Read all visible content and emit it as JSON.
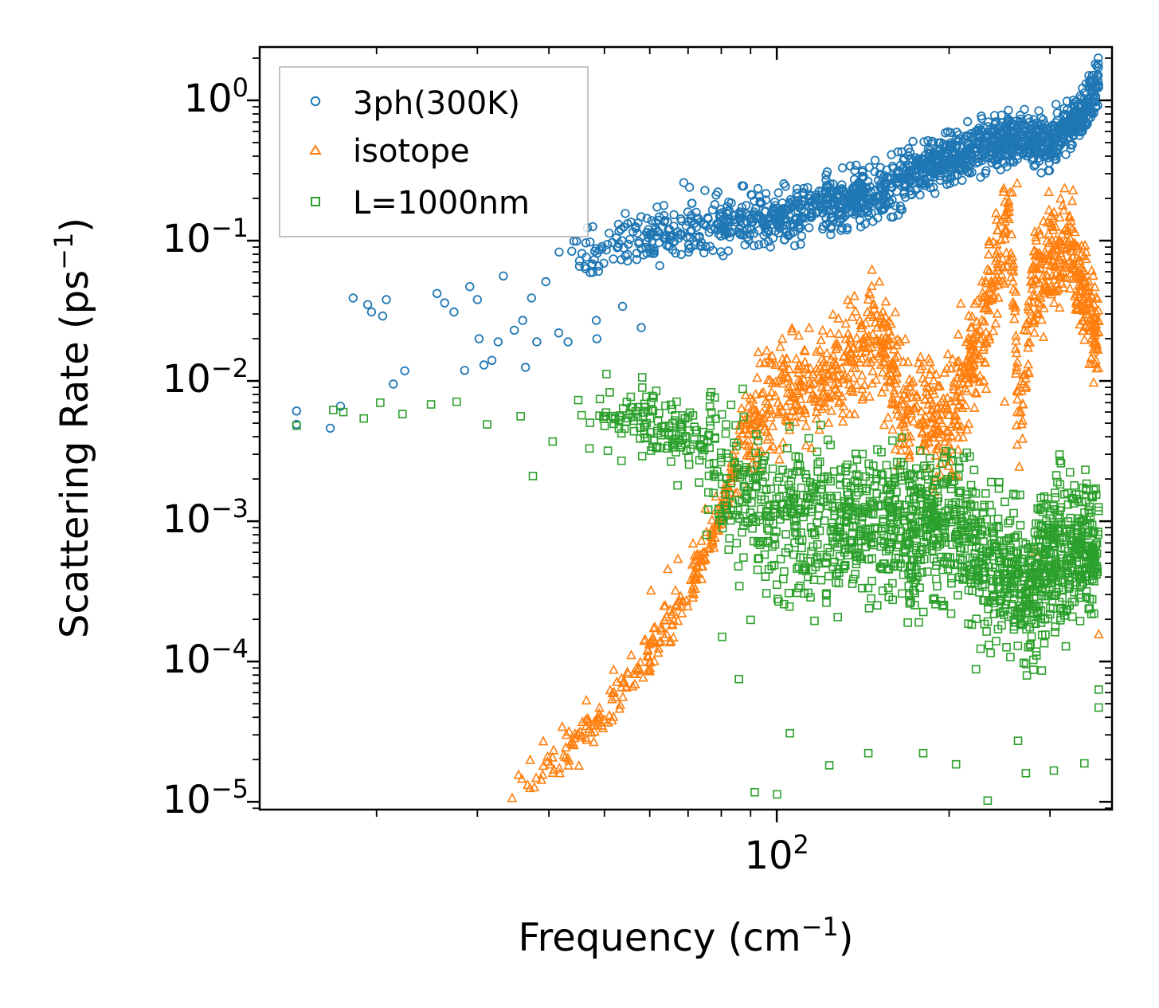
{
  "chart_data": {
    "type": "scatter",
    "title": "",
    "xlabel": "Frequency (cm",
    "xlabel_sup": "−1",
    "xlabel_tail": ")",
    "ylabel": "Scattering Rate (ps",
    "ylabel_sup": "−1",
    "ylabel_tail": ")",
    "xscale": "log",
    "yscale": "log",
    "xlim": [
      12.5,
      385
    ],
    "ylim": [
      8.8e-06,
      2.4
    ],
    "x_tick_labels": [
      {
        "value": 100,
        "base": "10",
        "exp": "2"
      }
    ],
    "y_tick_labels": [
      {
        "value": 1,
        "base": "10",
        "exp": "0"
      },
      {
        "value": 0.1,
        "base": "10",
        "exp": "−1"
      },
      {
        "value": 0.01,
        "base": "10",
        "exp": "−2"
      },
      {
        "value": 0.001,
        "base": "10",
        "exp": "−3"
      },
      {
        "value": 0.0001,
        "base": "10",
        "exp": "−4"
      },
      {
        "value": 1e-05,
        "base": "10",
        "exp": "−5"
      }
    ],
    "legend_position": "top-left",
    "series": [
      {
        "name": "3ph(300K)",
        "marker": "circle",
        "color": "#1f77b4",
        "trend": [
          [
            14.5,
            0.005
          ],
          [
            18,
            0.025
          ],
          [
            25,
            0.03
          ],
          [
            35,
            0.06
          ],
          [
            50,
            0.09
          ],
          [
            70,
            0.12
          ],
          [
            100,
            0.15
          ],
          [
            150,
            0.22
          ],
          [
            200,
            0.4
          ],
          [
            260,
            0.55
          ],
          [
            300,
            0.5
          ],
          [
            330,
            0.7
          ],
          [
            365,
            1.2
          ]
        ],
        "samples": [
          [
            14.5,
            0.0061
          ],
          [
            14.5,
            0.0049
          ],
          [
            16.6,
            0.0046
          ],
          [
            17.3,
            0.0066
          ],
          [
            18.2,
            0.039
          ],
          [
            19.3,
            0.035
          ],
          [
            19.6,
            0.031
          ],
          [
            20.5,
            0.029
          ],
          [
            20.8,
            0.038
          ],
          [
            21.4,
            0.0095
          ],
          [
            22.4,
            0.0118
          ],
          [
            25.5,
            0.042
          ],
          [
            26.3,
            0.036
          ],
          [
            27.3,
            0.031
          ],
          [
            28.5,
            0.0119
          ],
          [
            29.1,
            0.047
          ],
          [
            30.0,
            0.038
          ],
          [
            30.2,
            0.02
          ],
          [
            30.8,
            0.013
          ],
          [
            31.8,
            0.014
          ],
          [
            32.6,
            0.019
          ],
          [
            33.3,
            0.056
          ],
          [
            34.8,
            0.023
          ],
          [
            36.0,
            0.027
          ],
          [
            36.4,
            0.0125
          ],
          [
            37.3,
            0.039
          ],
          [
            38.1,
            0.019
          ],
          [
            39.5,
            0.051
          ],
          [
            41.6,
            0.022
          ],
          [
            43.2,
            0.019
          ],
          [
            48.4,
            0.027
          ],
          [
            48.5,
            0.02
          ],
          [
            53.8,
            0.034
          ],
          [
            58.0,
            0.024
          ],
          [
            60.8,
            0.081
          ],
          [
            65.0,
            0.12
          ],
          [
            68.8,
            0.259
          ],
          [
            70.4,
            0.24
          ],
          [
            74.9,
            0.228
          ],
          [
            78.9,
            0.222
          ],
          [
            90.2,
            0.213
          ],
          [
            95.7,
            0.195
          ],
          [
            125.0,
            0.189
          ],
          [
            139.9,
            0.184
          ],
          [
            159.8,
            0.328
          ],
          [
            200.0,
            0.462
          ],
          [
            234.2,
            0.701
          ],
          [
            269.9,
            0.673
          ],
          [
            275.2,
            0.743
          ],
          [
            300.0,
            0.549
          ],
          [
            303.7,
            0.481
          ],
          [
            339.3,
            0.834
          ],
          [
            348.6,
            0.936
          ],
          [
            365.0,
            1.291
          ]
        ]
      },
      {
        "name": "isotope",
        "marker": "triangle",
        "color": "#ff7f0e",
        "trend": [
          [
            35,
            1.05e-05
          ],
          [
            40,
            1.75e-05
          ],
          [
            50,
            4.2e-05
          ],
          [
            60,
            0.00011
          ],
          [
            70,
            0.0003
          ],
          [
            80,
            0.0012
          ],
          [
            90,
            0.0045
          ],
          [
            100,
            0.008
          ],
          [
            130,
            0.012
          ],
          [
            150,
            0.025
          ],
          [
            165,
            0.007
          ],
          [
            200,
            0.005
          ],
          [
            230,
            0.025
          ],
          [
            255,
            0.2
          ],
          [
            265,
            0.005
          ],
          [
            280,
            0.05
          ],
          [
            320,
            0.1
          ],
          [
            365,
            0.02
          ]
        ],
        "samples": [
          [
            34.5,
            1.06e-05
          ],
          [
            35.4,
            1.55e-05
          ],
          [
            37.1,
            1.98e-05
          ],
          [
            39.1,
            2.69e-05
          ],
          [
            42.2,
            3.41e-05
          ],
          [
            46.5,
            5.26e-05
          ],
          [
            51.9,
            8.68e-05
          ],
          [
            55.7,
            0.0001106
          ],
          [
            58.9,
            0.0001428
          ],
          [
            60.3,
            0.0003197
          ],
          [
            64.5,
            0.000454
          ],
          [
            67.2,
            0.000537
          ],
          [
            71.4,
            0.000691
          ],
          [
            75.0,
            0.001225
          ],
          [
            78.3,
            0.001497
          ],
          [
            83.8,
            0.003013
          ],
          [
            87.4,
            0.005012
          ],
          [
            94.1,
            0.00811
          ],
          [
            106.3,
            0.00911
          ],
          [
            118.9,
            0.0166
          ],
          [
            140.6,
            0.0237
          ],
          [
            161.1,
            0.0308
          ],
          [
            209.6,
            0.0355
          ],
          [
            236.8,
            0.0512
          ],
          [
            250.0,
            0.0071
          ],
          [
            262.9,
            0.2553
          ],
          [
            262.9,
            0.0035
          ],
          [
            282.7,
            0.0006
          ],
          [
            304.3,
            0.0779
          ],
          [
            329.1,
            0.2279
          ],
          [
            359.4,
            0.0133
          ],
          [
            365.0,
            0.0001558
          ]
        ]
      },
      {
        "name": "L=1000nm",
        "marker": "square",
        "color": "#2ca02c",
        "trend": [
          [
            14.5,
            0.005
          ],
          [
            25,
            0.007
          ],
          [
            35,
            0.0065
          ],
          [
            50,
            0.0055
          ],
          [
            70,
            0.0045
          ],
          [
            80,
            0.0025
          ],
          [
            100,
            0.001
          ],
          [
            150,
            0.001
          ],
          [
            200,
            0.0009
          ],
          [
            240,
            0.0005
          ],
          [
            280,
            0.0003
          ],
          [
            300,
            0.0006
          ],
          [
            365,
            0.0007
          ]
        ],
        "samples": [
          [
            14.5,
            0.0048
          ],
          [
            16.8,
            0.0062
          ],
          [
            17.5,
            0.006
          ],
          [
            19.0,
            0.0054
          ],
          [
            20.3,
            0.007
          ],
          [
            22.2,
            0.0058
          ],
          [
            24.9,
            0.0068
          ],
          [
            27.6,
            0.0071
          ],
          [
            31.2,
            0.0049
          ],
          [
            35.7,
            0.0056
          ],
          [
            37.5,
            0.0021
          ],
          [
            40.6,
            0.0037
          ],
          [
            45.0,
            0.0073
          ],
          [
            47.1,
            0.0033
          ],
          [
            50.4,
            0.0112
          ],
          [
            54.6,
            0.0051
          ],
          [
            58.2,
            0.0106
          ],
          [
            61.6,
            0.0085
          ],
          [
            67.1,
            0.0018
          ],
          [
            75.4,
            0.0008
          ],
          [
            80.3,
            0.00015
          ],
          [
            85.9,
            7.5e-05
          ],
          [
            90.0,
            0.000198
          ],
          [
            91.5,
            1.17e-05
          ],
          [
            100.1,
            1.13e-05
          ],
          [
            105.4,
            3.08e-05
          ],
          [
            123.5,
            1.82e-05
          ],
          [
            144.5,
            2.22e-05
          ],
          [
            180.2,
            2.22e-05
          ],
          [
            205.6,
            1.85e-05
          ],
          [
            233.5,
            1.02e-05
          ],
          [
            263.8,
            2.72e-05
          ],
          [
            272.3,
            1.6e-05
          ],
          [
            304.7,
            1.67e-05
          ],
          [
            344.5,
            1.88e-05
          ],
          [
            364.9,
            4.7e-05
          ],
          [
            365.0,
            6.31e-05
          ]
        ]
      }
    ]
  },
  "colors": {
    "blue": "#1f77b4",
    "orange": "#ff7f0e",
    "green": "#2ca02c",
    "axis": "#000000",
    "legend_border": "#b0b0b0"
  }
}
